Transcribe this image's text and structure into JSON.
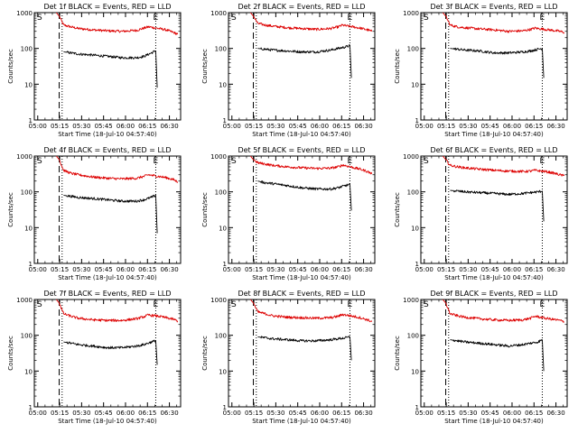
{
  "figure": {
    "xlabel": "Start Time (18-Jul-10 04:57:40)",
    "ylabel": "Counts/sec",
    "x_tick_labels": [
      "05:00",
      "05:15",
      "05:30",
      "05:45",
      "06:00",
      "06:15",
      "06:30"
    ],
    "y_tick_labels": [
      "1",
      "10",
      "100",
      "1000"
    ],
    "marker_start": "S",
    "marker_end": "E",
    "colors": {
      "events": "#000000",
      "lld": "#dd0000"
    }
  },
  "chart_data": [
    {
      "type": "line",
      "title": "Det 1f BLACK = Events, RED = LLD",
      "xlabel": "Start Time (18-Jul-10 04:57:40)",
      "ylabel": "Counts/sec",
      "yscale": "log",
      "ylim": [
        1,
        1000
      ],
      "xlim_minutes": [
        0,
        100
      ],
      "x_tick_labels": [
        "05:00",
        "05:15",
        "05:30",
        "05:45",
        "06:00",
        "06:15",
        "06:30"
      ],
      "markers": {
        "S_dashed_minutes": 17,
        "pre_dotted_minutes": 19,
        "E_dotted_minutes": 83
      },
      "series": [
        {
          "legend": "RED = LLD",
          "color": "#dd0000",
          "x_minutes": [
            15,
            17,
            20,
            25,
            30,
            40,
            50,
            60,
            70,
            75,
            78,
            80,
            85,
            90,
            95,
            98
          ],
          "values": [
            1000,
            800,
            450,
            400,
            360,
            330,
            310,
            300,
            320,
            370,
            400,
            390,
            360,
            330,
            280,
            250
          ]
        },
        {
          "legend": "BLACK = Events",
          "color": "#000000",
          "x_minutes": [
            20,
            25,
            30,
            40,
            50,
            60,
            70,
            75,
            80,
            83,
            84
          ],
          "values": [
            80,
            75,
            70,
            65,
            60,
            55,
            55,
            60,
            75,
            85,
            8
          ]
        }
      ]
    },
    {
      "type": "line",
      "title": "Det 2f BLACK = Events, RED = LLD",
      "xlabel": "Start Time (18-Jul-10 04:57:40)",
      "ylabel": "Counts/sec",
      "yscale": "log",
      "ylim": [
        1,
        1000
      ],
      "xlim_minutes": [
        0,
        100
      ],
      "x_tick_labels": [
        "05:00",
        "05:15",
        "05:30",
        "05:45",
        "06:00",
        "06:15",
        "06:30"
      ],
      "markers": {
        "S_dashed_minutes": 17,
        "pre_dotted_minutes": 19,
        "E_dotted_minutes": 83
      },
      "series": [
        {
          "legend": "RED = LLD",
          "color": "#dd0000",
          "x_minutes": [
            15,
            17,
            20,
            25,
            30,
            40,
            50,
            60,
            70,
            75,
            78,
            80,
            85,
            90,
            95,
            98
          ],
          "values": [
            1000,
            800,
            500,
            450,
            420,
            380,
            360,
            340,
            360,
            400,
            450,
            430,
            400,
            370,
            330,
            300
          ]
        },
        {
          "legend": "BLACK = Events",
          "color": "#000000",
          "x_minutes": [
            20,
            25,
            30,
            40,
            50,
            60,
            70,
            75,
            80,
            83,
            84
          ],
          "values": [
            100,
            95,
            90,
            85,
            80,
            80,
            90,
            100,
            110,
            120,
            15
          ]
        }
      ]
    },
    {
      "type": "line",
      "title": "Det 3f BLACK = Events, RED = LLD",
      "xlabel": "Start Time (18-Jul-10 04:57:40)",
      "ylabel": "Counts/sec",
      "yscale": "log",
      "ylim": [
        1,
        1000
      ],
      "xlim_minutes": [
        0,
        100
      ],
      "x_tick_labels": [
        "05:00",
        "05:15",
        "05:30",
        "05:45",
        "06:00",
        "06:15",
        "06:30"
      ],
      "markers": {
        "S_dashed_minutes": 17,
        "pre_dotted_minutes": 19,
        "E_dotted_minutes": 83
      },
      "series": [
        {
          "legend": "RED = LLD",
          "color": "#dd0000",
          "x_minutes": [
            15,
            17,
            20,
            25,
            30,
            40,
            50,
            60,
            70,
            75,
            78,
            80,
            85,
            90,
            95,
            98
          ],
          "values": [
            1000,
            800,
            450,
            400,
            380,
            350,
            330,
            300,
            310,
            340,
            370,
            360,
            340,
            320,
            300,
            280
          ]
        },
        {
          "legend": "BLACK = Events",
          "color": "#000000",
          "x_minutes": [
            20,
            25,
            30,
            40,
            50,
            60,
            70,
            75,
            80,
            83,
            84
          ],
          "values": [
            100,
            95,
            90,
            85,
            75,
            75,
            80,
            85,
            95,
            100,
            15
          ]
        }
      ]
    },
    {
      "type": "line",
      "title": "Det 4f BLACK = Events, RED = LLD",
      "xlabel": "Start Time (18-Jul-10 04:57:40)",
      "ylabel": "Counts/sec",
      "yscale": "log",
      "ylim": [
        1,
        1000
      ],
      "xlim_minutes": [
        0,
        100
      ],
      "x_tick_labels": [
        "05:00",
        "05:15",
        "05:30",
        "05:45",
        "06:00",
        "06:15",
        "06:30"
      ],
      "markers": {
        "S_dashed_minutes": 17,
        "pre_dotted_minutes": 19,
        "E_dotted_minutes": 83
      },
      "series": [
        {
          "legend": "RED = LLD",
          "color": "#dd0000",
          "x_minutes": [
            15,
            17,
            20,
            25,
            30,
            40,
            50,
            60,
            70,
            75,
            78,
            80,
            85,
            90,
            95,
            98
          ],
          "values": [
            1000,
            800,
            400,
            330,
            300,
            260,
            240,
            230,
            240,
            270,
            300,
            290,
            270,
            250,
            220,
            190
          ]
        },
        {
          "legend": "BLACK = Events",
          "color": "#000000",
          "x_minutes": [
            20,
            25,
            30,
            40,
            50,
            60,
            70,
            75,
            80,
            83,
            84
          ],
          "values": [
            80,
            75,
            70,
            65,
            60,
            55,
            55,
            60,
            70,
            80,
            7
          ]
        }
      ]
    },
    {
      "type": "line",
      "title": "Det 5f BLACK = Events, RED = LLD",
      "xlabel": "Start Time (18-Jul-10 04:57:40)",
      "ylabel": "Counts/sec",
      "yscale": "log",
      "ylim": [
        1,
        1000
      ],
      "xlim_minutes": [
        0,
        100
      ],
      "x_tick_labels": [
        "05:00",
        "05:15",
        "05:30",
        "05:45",
        "06:00",
        "06:15",
        "06:30"
      ],
      "markers": {
        "S_dashed_minutes": 17,
        "pre_dotted_minutes": 19,
        "E_dotted_minutes": 83
      },
      "series": [
        {
          "legend": "RED = LLD",
          "color": "#dd0000",
          "x_minutes": [
            15,
            17,
            20,
            25,
            30,
            40,
            50,
            60,
            70,
            75,
            78,
            80,
            85,
            90,
            95,
            98
          ],
          "values": [
            1000,
            800,
            650,
            600,
            550,
            500,
            470,
            450,
            460,
            500,
            560,
            540,
            480,
            430,
            370,
            320
          ]
        },
        {
          "legend": "BLACK = Events",
          "color": "#000000",
          "x_minutes": [
            20,
            25,
            30,
            40,
            50,
            60,
            70,
            75,
            80,
            83,
            84
          ],
          "values": [
            200,
            180,
            170,
            150,
            130,
            120,
            120,
            130,
            150,
            160,
            30
          ]
        }
      ]
    },
    {
      "type": "line",
      "title": "Det 6f BLACK = Events, RED = LLD",
      "xlabel": "Start Time (18-Jul-10 04:57:40)",
      "ylabel": "Counts/sec",
      "yscale": "log",
      "ylim": [
        1,
        1000
      ],
      "xlim_minutes": [
        0,
        100
      ],
      "x_tick_labels": [
        "05:00",
        "05:15",
        "05:30",
        "05:45",
        "06:00",
        "06:15",
        "06:30"
      ],
      "markers": {
        "S_dashed_minutes": 17,
        "pre_dotted_minutes": 19,
        "E_dotted_minutes": 83
      },
      "series": [
        {
          "legend": "RED = LLD",
          "color": "#dd0000",
          "x_minutes": [
            15,
            17,
            20,
            25,
            30,
            40,
            50,
            60,
            70,
            75,
            78,
            80,
            85,
            90,
            95,
            98
          ],
          "values": [
            1000,
            800,
            550,
            500,
            470,
            430,
            400,
            380,
            370,
            380,
            400,
            390,
            370,
            340,
            300,
            280
          ]
        },
        {
          "legend": "BLACK = Events",
          "color": "#000000",
          "x_minutes": [
            20,
            25,
            30,
            40,
            50,
            60,
            70,
            75,
            80,
            83,
            84
          ],
          "values": [
            110,
            105,
            100,
            95,
            90,
            85,
            90,
            95,
            100,
            105,
            15
          ]
        }
      ]
    },
    {
      "type": "line",
      "title": "Det 7f BLACK = Events, RED = LLD",
      "xlabel": "Start Time (18-Jul-10 04:57:40)",
      "ylabel": "Counts/sec",
      "yscale": "log",
      "ylim": [
        1,
        1000
      ],
      "xlim_minutes": [
        0,
        100
      ],
      "x_tick_labels": [
        "05:00",
        "05:15",
        "05:30",
        "05:45",
        "06:00",
        "06:15",
        "06:30"
      ],
      "markers": {
        "S_dashed_minutes": 17,
        "pre_dotted_minutes": 19,
        "E_dotted_minutes": 83
      },
      "series": [
        {
          "legend": "RED = LLD",
          "color": "#dd0000",
          "x_minutes": [
            15,
            17,
            20,
            25,
            30,
            40,
            50,
            60,
            70,
            75,
            78,
            80,
            85,
            90,
            95,
            98
          ],
          "values": [
            1000,
            800,
            400,
            340,
            300,
            270,
            260,
            260,
            290,
            330,
            370,
            360,
            340,
            310,
            280,
            250
          ]
        },
        {
          "legend": "BLACK = Events",
          "color": "#000000",
          "x_minutes": [
            20,
            25,
            30,
            40,
            50,
            60,
            70,
            75,
            80,
            83,
            84
          ],
          "values": [
            65,
            60,
            55,
            50,
            45,
            45,
            50,
            55,
            65,
            70,
            15
          ]
        }
      ]
    },
    {
      "type": "line",
      "title": "Det 8f BLACK = Events, RED = LLD",
      "xlabel": "Start Time (18-Jul-10 04:57:40)",
      "ylabel": "Counts/sec",
      "yscale": "log",
      "ylim": [
        1,
        1000
      ],
      "xlim_minutes": [
        0,
        100
      ],
      "x_tick_labels": [
        "05:00",
        "05:15",
        "05:30",
        "05:45",
        "06:00",
        "06:15",
        "06:30"
      ],
      "markers": {
        "S_dashed_minutes": 17,
        "pre_dotted_minutes": 19,
        "E_dotted_minutes": 83
      },
      "series": [
        {
          "legend": "RED = LLD",
          "color": "#dd0000",
          "x_minutes": [
            15,
            17,
            20,
            25,
            30,
            40,
            50,
            60,
            70,
            75,
            78,
            80,
            85,
            90,
            95,
            98
          ],
          "values": [
            1000,
            800,
            450,
            400,
            350,
            320,
            310,
            300,
            310,
            340,
            380,
            370,
            340,
            310,
            270,
            240
          ]
        },
        {
          "legend": "BLACK = Events",
          "color": "#000000",
          "x_minutes": [
            20,
            25,
            30,
            40,
            50,
            60,
            70,
            75,
            80,
            83,
            84
          ],
          "values": [
            90,
            85,
            80,
            75,
            70,
            70,
            75,
            80,
            85,
            90,
            20
          ]
        }
      ]
    },
    {
      "type": "line",
      "title": "Det 9f BLACK = Events, RED = LLD",
      "xlabel": "Start Time (18-Jul-10 04:57:40)",
      "ylabel": "Counts/sec",
      "yscale": "log",
      "ylim": [
        1,
        1000
      ],
      "xlim_minutes": [
        0,
        100
      ],
      "x_tick_labels": [
        "05:00",
        "05:15",
        "05:30",
        "05:45",
        "06:00",
        "06:15",
        "06:30"
      ],
      "markers": {
        "S_dashed_minutes": 17,
        "pre_dotted_minutes": 19,
        "E_dotted_minutes": 83
      },
      "series": [
        {
          "legend": "RED = LLD",
          "color": "#dd0000",
          "x_minutes": [
            15,
            17,
            20,
            25,
            30,
            40,
            50,
            60,
            70,
            75,
            78,
            80,
            85,
            90,
            95,
            98
          ],
          "values": [
            1000,
            800,
            400,
            350,
            320,
            290,
            270,
            260,
            270,
            300,
            340,
            330,
            300,
            280,
            260,
            240
          ]
        },
        {
          "legend": "BLACK = Events",
          "color": "#000000",
          "x_minutes": [
            20,
            25,
            30,
            40,
            50,
            60,
            70,
            75,
            80,
            83,
            84
          ],
          "values": [
            75,
            70,
            65,
            60,
            55,
            50,
            55,
            60,
            65,
            75,
            10
          ]
        }
      ]
    }
  ]
}
